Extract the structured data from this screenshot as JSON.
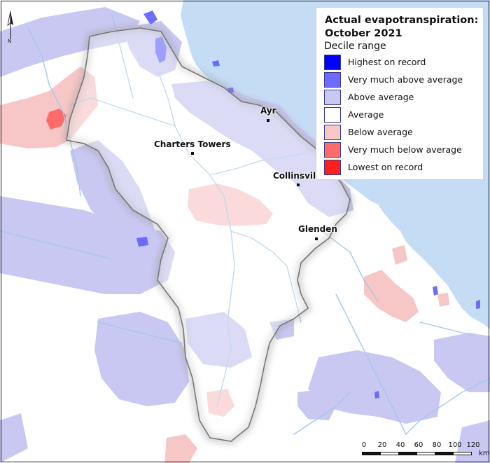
{
  "legend": {
    "title": "Actual evapotranspiration:\nOctober 2021",
    "subtitle": "Decile range",
    "items": [
      {
        "label": "Highest on record",
        "color": "#0000ff"
      },
      {
        "label": "Very much above average",
        "color": "#6b6bff"
      },
      {
        "label": "Above average",
        "color": "#c8c8f2"
      },
      {
        "label": "Average",
        "color": "#ffffff"
      },
      {
        "label": "Below average",
        "color": "#f7c6c6"
      },
      {
        "label": "Very much below average",
        "color": "#ff6b6b"
      },
      {
        "label": "Lowest on record",
        "color": "#ff1f1f"
      }
    ]
  },
  "towns": [
    {
      "name": "Ayr"
    },
    {
      "name": "Charters Towers"
    },
    {
      "name": "Collinsvil"
    },
    {
      "name": "Glenden"
    }
  ],
  "scale_bar": {
    "ticks": [
      "0",
      "20",
      "40",
      "60",
      "80",
      "100",
      "120"
    ],
    "unit": "km"
  },
  "north_arrow": {
    "label": "N"
  },
  "colors": {
    "sea": "#c4dcf4",
    "rivers": "#a6c8e6",
    "outline": "#777777"
  }
}
